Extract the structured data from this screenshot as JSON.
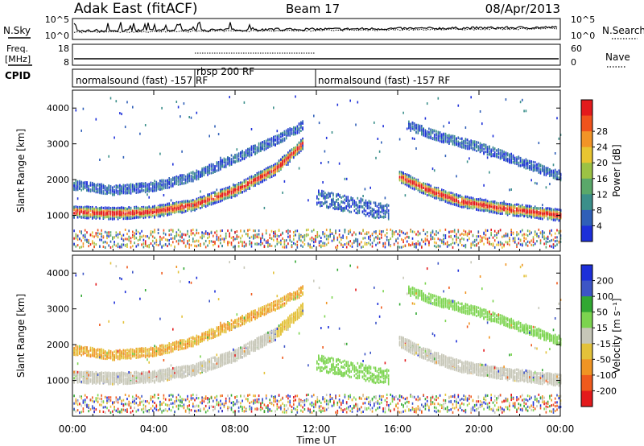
{
  "header": {
    "station": "Adak East (fitACF)",
    "beam": "Beam 17",
    "date": "08/Apr/2013"
  },
  "aux_panels": {
    "noise": {
      "left_label": "N.Sky",
      "right_label": "N.Search",
      "left_ticks": [
        "10^5",
        "10^0"
      ],
      "right_ticks": [
        "10^5",
        "10^0"
      ]
    },
    "freq": {
      "left_label_1": "Freq.",
      "left_label_2": "[MHz]",
      "right_label": "Nave",
      "left_ticks": [
        "18",
        "8"
      ],
      "right_ticks": [
        "60",
        "0"
      ]
    },
    "cpid": {
      "label": "CPID",
      "segments": [
        {
          "name": "normalsound (fast) -157 RF",
          "start_h": 0.0,
          "end_h": 6.0
        },
        {
          "name": "rbsp 200 RF",
          "start_h": 6.0,
          "end_h": 12.0
        },
        {
          "name": "normalsound (fast) -157 RF",
          "start_h": 12.0,
          "end_h": 24.0
        }
      ]
    }
  },
  "chart_data": [
    {
      "type": "heatmap",
      "name": "power",
      "ylabel": "Slant Range [km]",
      "ylim": [
        0,
        4500
      ],
      "yticks": [
        "1000",
        "2000",
        "3000",
        "4000"
      ],
      "colorbar": {
        "label": "Power [dB]",
        "ticks": [
          "4",
          "8",
          "12",
          "16",
          "20",
          "24",
          "28"
        ],
        "colors": [
          "#1d2fd9",
          "#2f5fb8",
          "#3b8f8a",
          "#5aa86a",
          "#9cc244",
          "#e8c531",
          "#f29427",
          "#f0531d",
          "#e31a1c"
        ]
      },
      "features": [
        {
          "band": "main",
          "points": [
            [
              0.0,
              1100
            ],
            [
              2.0,
              1050
            ],
            [
              4.0,
              1100
            ],
            [
              6.0,
              1300
            ],
            [
              8.0,
              1700
            ],
            [
              10.0,
              2300
            ],
            [
              11.3,
              3000
            ]
          ]
        },
        {
          "band": "upper",
          "points": [
            [
              0.0,
              1850
            ],
            [
              2.0,
              1700
            ],
            [
              4.0,
              1800
            ],
            [
              6.0,
              2100
            ],
            [
              8.0,
              2600
            ],
            [
              10.0,
              3100
            ],
            [
              11.3,
              3500
            ]
          ]
        },
        {
          "band": "main_late",
          "points": [
            [
              16.0,
              2100
            ],
            [
              17.5,
              1700
            ],
            [
              19.0,
              1400
            ],
            [
              21.0,
              1200
            ],
            [
              24.0,
              1000
            ]
          ]
        },
        {
          "band": "upper_late",
          "points": [
            [
              16.5,
              3500
            ],
            [
              18.0,
              3200
            ],
            [
              20.0,
              2900
            ],
            [
              22.0,
              2500
            ],
            [
              24.0,
              2100
            ]
          ]
        }
      ]
    },
    {
      "type": "heatmap",
      "name": "velocity",
      "ylabel": "Slant Range [km]",
      "ylim": [
        0,
        4500
      ],
      "yticks": [
        "1000",
        "2000",
        "3000",
        "4000"
      ],
      "colorbar": {
        "label": "Velocity [m s⁻¹]",
        "ticks": [
          "200",
          "100",
          "50",
          "15",
          "-15",
          "-50",
          "-100",
          "-200"
        ],
        "colors": [
          "#1d2fd9",
          "#3d55c6",
          "#31a832",
          "#7cd44f",
          "#c7c7b8",
          "#e3c23a",
          "#f09423",
          "#ef5a1d",
          "#e31a1c"
        ]
      }
    }
  ],
  "xaxis": {
    "label": "Time UT",
    "ticks": [
      "00:00",
      "04:00",
      "08:00",
      "12:00",
      "16:00",
      "20:00",
      "00:00"
    ]
  },
  "colors": {
    "blue": "#1d2fd9",
    "teal": "#3b8f8a",
    "green": "#5aa86a",
    "orange": "#f29427",
    "red": "#e31a1c",
    "gray": "#c7c7b8"
  }
}
